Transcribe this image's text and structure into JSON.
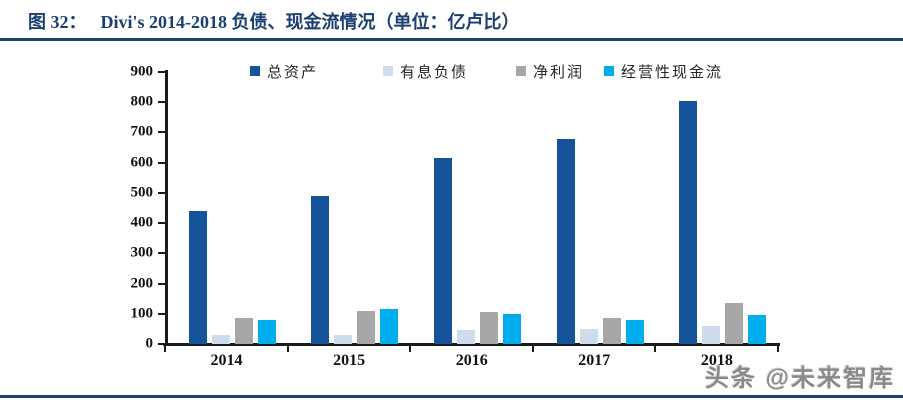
{
  "figure": {
    "title_label": "图 32：",
    "title_text": "Divi's 2014-2018 负债、现金流情况（单位：亿卢比）",
    "watermark": "头条 @未来智库"
  },
  "chart_data": {
    "type": "bar",
    "title": "Divi's 2014-2018 负债、现金流情况",
    "unit": "亿卢比",
    "categories": [
      "2014",
      "2015",
      "2016",
      "2017",
      "2018"
    ],
    "series": [
      {
        "name": "总资产",
        "color": "#15549A",
        "values": [
          440,
          490,
          615,
          680,
          805
        ]
      },
      {
        "name": "有息负债",
        "color": "#CFDCEC",
        "values": [
          30,
          30,
          45,
          50,
          60
        ]
      },
      {
        "name": "净利润",
        "color": "#A7A7A7",
        "values": [
          85,
          110,
          105,
          85,
          135
        ]
      },
      {
        "name": "经营性现金流",
        "color": "#00AEEF",
        "values": [
          80,
          115,
          100,
          78,
          95
        ]
      }
    ],
    "ylim": [
      0,
      900
    ],
    "ytick_step": 100,
    "yticks": [
      0,
      100,
      200,
      300,
      400,
      500,
      600,
      700,
      800,
      900
    ],
    "legend_position": "top",
    "grid": false,
    "axis_color": "#1a1a1a",
    "accent_color": "#1b3f70",
    "legend_x_positions": [
      250,
      383,
      516,
      604
    ]
  }
}
